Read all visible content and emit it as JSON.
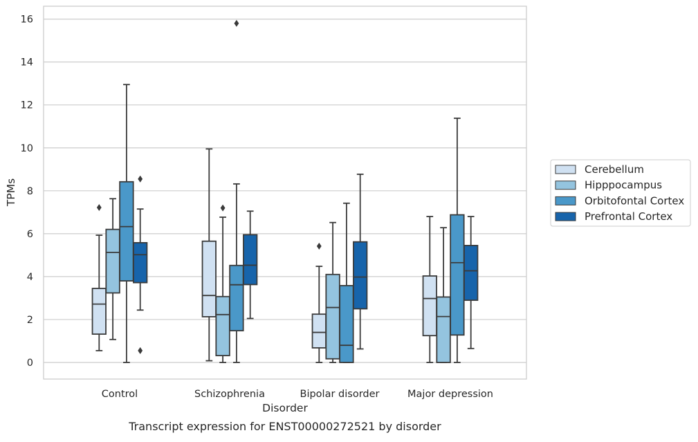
{
  "chart_data": {
    "type": "box",
    "title": "",
    "caption": "Transcript expression for ENST00000272521 by disorder",
    "xlabel": "Disorder",
    "ylabel": "TPMs",
    "ylim": [
      -0.75,
      16.6
    ],
    "yticks": [
      0,
      2,
      4,
      6,
      8,
      10,
      12,
      14,
      16
    ],
    "grid": "horizontal",
    "legend_position": "right",
    "categories": [
      "Control",
      "Schizophrenia",
      "Bipolar disorder",
      "Major depression"
    ],
    "series": [
      {
        "name": "Cerebellum",
        "color": "#d0e1f2",
        "boxes": [
          {
            "whisker_low": 0.55,
            "q1": 1.32,
            "median": 2.72,
            "q3": 3.45,
            "whisker_high": 5.93,
            "outliers": [
              7.22
            ]
          },
          {
            "whisker_low": 0.08,
            "q1": 2.13,
            "median": 3.12,
            "q3": 5.65,
            "whisker_high": 9.95,
            "outliers": []
          },
          {
            "whisker_low": 0.0,
            "q1": 0.68,
            "median": 1.4,
            "q3": 2.25,
            "whisker_high": 4.48,
            "outliers": [
              5.42
            ]
          },
          {
            "whisker_low": 0.0,
            "q1": 1.25,
            "median": 2.98,
            "q3": 4.03,
            "whisker_high": 6.8,
            "outliers": []
          }
        ]
      },
      {
        "name": "Hipppocampus",
        "color": "#94c4df",
        "boxes": [
          {
            "whisker_low": 1.07,
            "q1": 3.24,
            "median": 5.13,
            "q3": 6.2,
            "whisker_high": 7.63,
            "outliers": []
          },
          {
            "whisker_low": 0.0,
            "q1": 0.32,
            "median": 2.23,
            "q3": 3.07,
            "whisker_high": 6.77,
            "outliers": [
              7.2
            ]
          },
          {
            "whisker_low": 0.0,
            "q1": 0.17,
            "median": 2.56,
            "q3": 4.1,
            "whisker_high": 6.52,
            "outliers": []
          },
          {
            "whisker_low": 0.0,
            "q1": 0.0,
            "median": 2.14,
            "q3": 3.05,
            "whisker_high": 6.28,
            "outliers": []
          }
        ]
      },
      {
        "name": "Orbitofontal Cortex",
        "color": "#4a98c9",
        "boxes": [
          {
            "whisker_low": 0.0,
            "q1": 3.8,
            "median": 6.33,
            "q3": 8.42,
            "whisker_high": 12.95,
            "outliers": []
          },
          {
            "whisker_low": 0.0,
            "q1": 1.48,
            "median": 3.62,
            "q3": 4.52,
            "whisker_high": 8.32,
            "outliers": [
              15.8
            ]
          },
          {
            "whisker_low": 0.0,
            "q1": 0.0,
            "median": 0.8,
            "q3": 3.58,
            "whisker_high": 7.42,
            "outliers": []
          },
          {
            "whisker_low": 0.0,
            "q1": 1.28,
            "median": 4.65,
            "q3": 6.88,
            "whisker_high": 11.38,
            "outliers": []
          }
        ]
      },
      {
        "name": "Prefrontal Cortex",
        "color": "#1764ab",
        "boxes": [
          {
            "whisker_low": 2.44,
            "q1": 3.72,
            "median": 5.02,
            "q3": 5.58,
            "whisker_high": 7.15,
            "outliers": [
              8.55,
              0.55
            ]
          },
          {
            "whisker_low": 2.05,
            "q1": 3.63,
            "median": 4.53,
            "q3": 5.95,
            "whisker_high": 7.05,
            "outliers": []
          },
          {
            "whisker_low": 0.63,
            "q1": 2.5,
            "median": 3.98,
            "q3": 5.62,
            "whisker_high": 8.77,
            "outliers": []
          },
          {
            "whisker_low": 0.65,
            "q1": 2.9,
            "median": 4.27,
            "q3": 5.45,
            "whisker_high": 6.8,
            "outliers": []
          }
        ]
      }
    ]
  }
}
